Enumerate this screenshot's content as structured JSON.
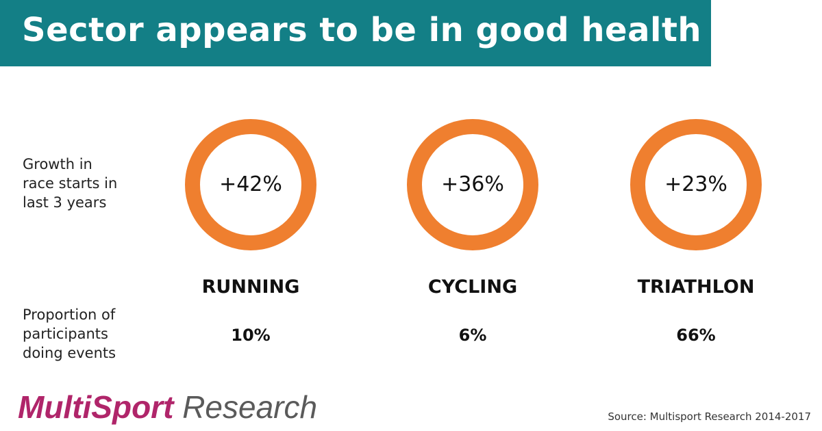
{
  "header": {
    "title": "Sector appears to be in good health"
  },
  "row_labels": {
    "growth": [
      "Growth in",
      "race starts in",
      "last 3 years"
    ],
    "proportion": [
      "Proportion of",
      "participants",
      "doing events"
    ]
  },
  "columns": [
    {
      "growth": "+42%",
      "sport": "RUNNING",
      "proportion": "10%"
    },
    {
      "growth": "+36%",
      "sport": "CYCLING",
      "proportion": "6%"
    },
    {
      "growth": "+23%",
      "sport": "TRIATHLON",
      "proportion": "66%"
    }
  ],
  "logo": {
    "part1": "MultiSport",
    "part2": "Research"
  },
  "source": "Source: Multisport Research 2014-2017"
}
